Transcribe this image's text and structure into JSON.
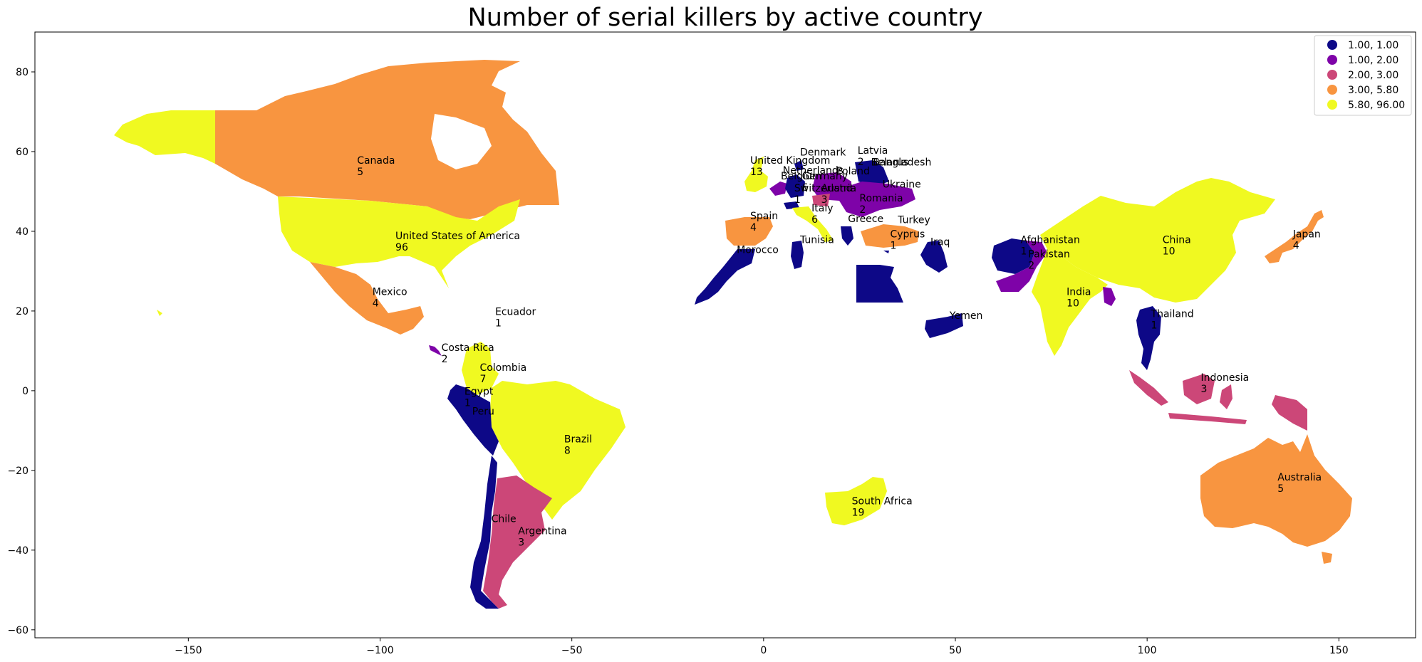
{
  "chart_data": {
    "type": "choropleth",
    "title": "Number of serial killers by active country",
    "xlim": [
      -190,
      170
    ],
    "ylim": [
      -62,
      90
    ],
    "x_ticks": [
      -150,
      -100,
      -50,
      0,
      50,
      100,
      150
    ],
    "y_ticks": [
      -60,
      -40,
      -20,
      0,
      20,
      40,
      60,
      80
    ],
    "legend": {
      "placement": "top-right",
      "entries": [
        {
          "label": "1.00,  1.00",
          "color": "#0d0887"
        },
        {
          "label": "1.00,  2.00",
          "color": "#7e03a8"
        },
        {
          "label": "2.00,  3.00",
          "color": "#cc4778"
        },
        {
          "label": "3.00,  5.80",
          "color": "#f89540"
        },
        {
          "label": "5.80, 96.00",
          "color": "#f0f921"
        }
      ]
    },
    "countries": [
      {
        "name": "Canada",
        "value": "5",
        "lon": -106,
        "lat": 57
      },
      {
        "name": "United States of America",
        "value": "96",
        "lon": -96,
        "lat": 38
      },
      {
        "name": "Mexico",
        "value": "4",
        "lon": -102,
        "lat": 24
      },
      {
        "name": "Ecuador",
        "value": "1",
        "lon": -70,
        "lat": 19
      },
      {
        "name": "Costa Rica",
        "value": "2",
        "lon": -84,
        "lat": 10
      },
      {
        "name": "Colombia",
        "value": "7",
        "lon": -74,
        "lat": 5
      },
      {
        "name": "Egypt",
        "value": "1",
        "lon": -78,
        "lat": -1
      },
      {
        "name": "Peru",
        "value": "",
        "lon": -76,
        "lat": -6
      },
      {
        "name": "Brazil",
        "value": "8",
        "lon": -52,
        "lat": -13
      },
      {
        "name": "Chile",
        "value": "",
        "lon": -71,
        "lat": -33
      },
      {
        "name": "Argentina",
        "value": "3",
        "lon": -64,
        "lat": -36
      },
      {
        "name": "United Kingdom",
        "value": "13",
        "lon": -3.5,
        "lat": 57
      },
      {
        "name": "Denmark",
        "value": "",
        "lon": 9.5,
        "lat": 59
      },
      {
        "name": "Latvia",
        "value": "2",
        "lon": 24.5,
        "lat": 59.5
      },
      {
        "name": "Belarus",
        "value": "",
        "lon": 28,
        "lat": 56.5
      },
      {
        "name": "Bangladesh",
        "value": "",
        "lon": 28.5,
        "lat": 56.5
      },
      {
        "name": "Netherlands",
        "value": "",
        "lon": 5,
        "lat": 54.5
      },
      {
        "name": "Poland",
        "value": "",
        "lon": 19,
        "lat": 54.3
      },
      {
        "name": "Germany",
        "value": "6",
        "lon": 10,
        "lat": 53
      },
      {
        "name": "Belgium",
        "value": "",
        "lon": 4.5,
        "lat": 53
      },
      {
        "name": "Ukraine",
        "value": "",
        "lon": 31,
        "lat": 51
      },
      {
        "name": "Switzerland",
        "value": "1",
        "lon": 8,
        "lat": 50
      },
      {
        "name": "Austria",
        "value": "3",
        "lon": 15,
        "lat": 50
      },
      {
        "name": "Romania",
        "value": "2",
        "lon": 25,
        "lat": 47.5
      },
      {
        "name": "Italy",
        "value": "6",
        "lon": 12.5,
        "lat": 45
      },
      {
        "name": "Spain",
        "value": "4",
        "lon": -3.5,
        "lat": 43
      },
      {
        "name": "Greece",
        "value": "",
        "lon": 22,
        "lat": 42.3
      },
      {
        "name": "Turkey",
        "value": "",
        "lon": 35,
        "lat": 42
      },
      {
        "name": "Cyprus",
        "value": "1",
        "lon": 33,
        "lat": 38.5
      },
      {
        "name": "Iraq",
        "value": "",
        "lon": 43.5,
        "lat": 36.5
      },
      {
        "name": "Tunisia",
        "value": "",
        "lon": 9.5,
        "lat": 37
      },
      {
        "name": "Morocco",
        "value": "",
        "lon": -7,
        "lat": 34.5
      },
      {
        "name": "Afghanistan",
        "value": "1",
        "lon": 67,
        "lat": 37
      },
      {
        "name": "Pakistan",
        "value": "2",
        "lon": 69,
        "lat": 33.5
      },
      {
        "name": "China",
        "value": "10",
        "lon": 104,
        "lat": 37
      },
      {
        "name": "Japan",
        "value": "4",
        "lon": 138,
        "lat": 38.5
      },
      {
        "name": "India",
        "value": "10",
        "lon": 79,
        "lat": 24
      },
      {
        "name": "Yemen",
        "value": "",
        "lon": 48.5,
        "lat": 18
      },
      {
        "name": "Thailand",
        "value": "1",
        "lon": 101,
        "lat": 18.5
      },
      {
        "name": "Indonesia",
        "value": "3",
        "lon": 114,
        "lat": 2.5
      },
      {
        "name": "South Africa",
        "value": "19",
        "lon": 23,
        "lat": -28.5
      },
      {
        "name": "Australia",
        "value": "5",
        "lon": 134,
        "lat": -22.5
      }
    ]
  }
}
